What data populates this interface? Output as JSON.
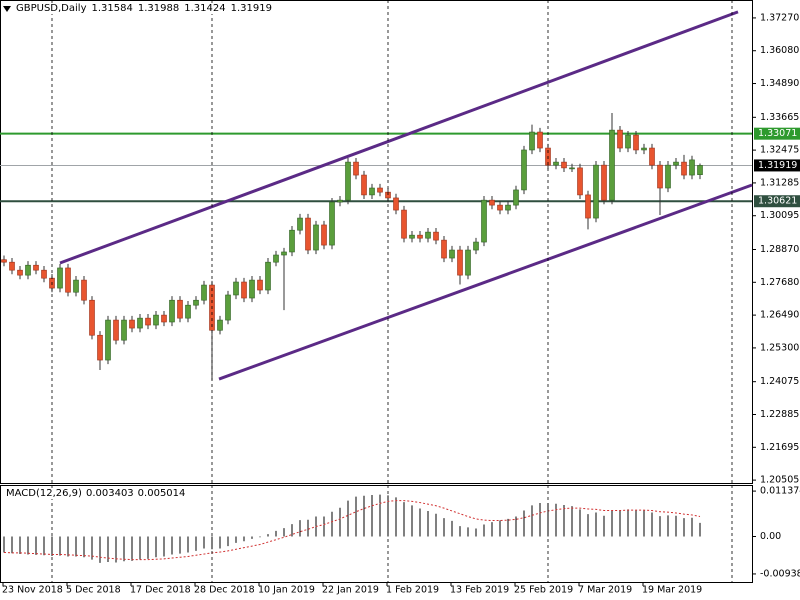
{
  "chart_data": [
    {
      "type": "candlestick",
      "title": "GBPUSD,Daily",
      "categories": [
        "23 Nov 2018",
        null,
        null,
        null,
        null,
        null,
        null,
        null,
        "5 Dec 2018",
        null,
        null,
        null,
        null,
        null,
        null,
        null,
        "17 Dec 2018",
        null,
        null,
        null,
        null,
        null,
        null,
        null,
        "28 Dec 2018",
        null,
        null,
        null,
        null,
        null,
        null,
        null,
        "10 Jan 2019",
        null,
        null,
        null,
        null,
        null,
        null,
        null,
        "22 Jan 2019",
        null,
        null,
        null,
        null,
        null,
        null,
        null,
        "1 Feb 2019",
        null,
        null,
        null,
        null,
        null,
        null,
        null,
        "13 Feb 2019",
        null,
        null,
        null,
        null,
        null,
        null,
        null,
        "25 Feb 2019",
        null,
        null,
        null,
        null,
        null,
        null,
        null,
        "7 Mar 2019",
        null,
        null,
        null,
        null,
        null,
        null,
        null,
        "19 Mar 2019",
        null,
        null,
        null,
        null,
        null,
        null,
        null
      ],
      "open": [
        1.285,
        1.2841,
        1.2812,
        1.2794,
        1.283,
        1.2812,
        1.2783,
        1.2747,
        1.282,
        1.2732,
        1.2776,
        1.2703,
        1.2576,
        1.2486,
        1.2631,
        1.2558,
        1.2631,
        1.2602,
        1.2638,
        1.2613,
        1.2649,
        1.2624,
        1.2703,
        1.2638,
        1.2685,
        1.2703,
        1.2758,
        1.2594,
        1.2631,
        1.2722,
        1.2769,
        1.2711,
        1.2776,
        1.274,
        1.2841,
        1.2867,
        1.2878,
        1.2957,
        1.3001,
        1.2885,
        1.2976,
        1.2903,
        1.3059,
        1.3066,
        1.3204,
        1.3157,
        1.3085,
        1.311,
        1.3095,
        1.3074,
        1.303,
        1.2928,
        1.2939,
        1.2928,
        1.295,
        1.2921,
        1.2856,
        1.2885,
        1.2794,
        1.2885,
        1.2914,
        1.3066,
        1.3048,
        1.303,
        1.3048,
        1.3103,
        1.3248,
        1.3313,
        1.3255,
        1.3193,
        1.3204,
        1.3183,
        1.3183,
        1.3085,
        1.3001,
        1.3193,
        1.3066,
        1.332,
        1.3255,
        1.3302,
        1.3248,
        1.3255,
        1.3193,
        1.311,
        1.3193,
        1.3204,
        1.3157,
        1.31584
      ],
      "high": [
        1.2865,
        1.2856,
        1.2827,
        1.2845,
        1.2845,
        1.2827,
        1.2798,
        1.2835,
        1.2835,
        1.2791,
        1.2791,
        1.2718,
        1.2591,
        1.2646,
        1.2646,
        1.2646,
        1.2646,
        1.2653,
        1.2653,
        1.2664,
        1.2664,
        1.2718,
        1.2718,
        1.27,
        1.2718,
        1.2773,
        1.2773,
        1.2646,
        1.2737,
        1.2784,
        1.2784,
        1.2791,
        1.2791,
        1.2856,
        1.2882,
        1.2893,
        1.2972,
        1.3016,
        1.3016,
        1.2991,
        1.2991,
        1.3074,
        1.3081,
        1.3219,
        1.3219,
        1.3172,
        1.3125,
        1.3125,
        1.311,
        1.3089,
        1.3045,
        1.2954,
        1.2954,
        1.2965,
        1.2965,
        1.2936,
        1.29,
        1.29,
        1.29,
        1.2929,
        1.3081,
        1.3081,
        1.3063,
        1.3063,
        1.3118,
        1.3263,
        1.334,
        1.3328,
        1.327,
        1.3219,
        1.3219,
        1.3198,
        1.3198,
        1.31,
        1.3208,
        1.3208,
        1.3382,
        1.3335,
        1.3317,
        1.3317,
        1.327,
        1.327,
        1.3208,
        1.3208,
        1.3219,
        1.323,
        1.3227,
        1.31988
      ],
      "low": [
        1.2826,
        1.2797,
        1.2779,
        1.2779,
        1.2797,
        1.2768,
        1.2732,
        1.2732,
        1.2717,
        1.2717,
        1.2688,
        1.2561,
        1.245,
        1.2471,
        1.2543,
        1.2543,
        1.2587,
        1.2587,
        1.2598,
        1.2598,
        1.2609,
        1.2609,
        1.2623,
        1.2623,
        1.267,
        1.2688,
        1.2413,
        1.2579,
        1.2616,
        1.2707,
        1.2696,
        1.2696,
        1.2725,
        1.2725,
        1.2826,
        1.2667,
        1.2863,
        1.2942,
        1.287,
        1.287,
        1.2888,
        1.2888,
        1.3044,
        1.3051,
        1.3142,
        1.307,
        1.307,
        1.308,
        1.3059,
        1.3015,
        1.2913,
        1.2913,
        1.2913,
        1.2913,
        1.2906,
        1.2841,
        1.2841,
        1.276,
        1.2779,
        1.287,
        1.2899,
        1.3033,
        1.3015,
        1.3015,
        1.3033,
        1.3088,
        1.3233,
        1.324,
        1.3178,
        1.3178,
        1.3168,
        1.3168,
        1.307,
        1.296,
        1.2986,
        1.3051,
        1.3051,
        1.324,
        1.324,
        1.3233,
        1.3233,
        1.3178,
        1.3012,
        1.3095,
        1.3178,
        1.3142,
        1.3142,
        1.31424
      ],
      "close": [
        1.2841,
        1.2812,
        1.2794,
        1.283,
        1.2812,
        1.2783,
        1.2747,
        1.282,
        1.2732,
        1.2776,
        1.2703,
        1.2576,
        1.2486,
        1.2631,
        1.2558,
        1.2631,
        1.2602,
        1.2638,
        1.2613,
        1.2649,
        1.2624,
        1.2703,
        1.2638,
        1.2685,
        1.2703,
        1.2758,
        1.2594,
        1.2631,
        1.2722,
        1.2769,
        1.2711,
        1.2776,
        1.274,
        1.2841,
        1.2867,
        1.2878,
        1.2957,
        1.3001,
        1.2885,
        1.2976,
        1.2903,
        1.3059,
        1.3066,
        1.3204,
        1.3157,
        1.3085,
        1.311,
        1.3095,
        1.3074,
        1.303,
        1.2928,
        1.2939,
        1.2928,
        1.295,
        1.2921,
        1.2856,
        1.2885,
        1.2794,
        1.2885,
        1.2914,
        1.3066,
        1.3048,
        1.303,
        1.3048,
        1.3103,
        1.3248,
        1.3313,
        1.3255,
        1.3193,
        1.3204,
        1.3183,
        1.3183,
        1.3085,
        1.3001,
        1.3193,
        1.3066,
        1.332,
        1.3255,
        1.3302,
        1.3248,
        1.3255,
        1.3193,
        1.311,
        1.3193,
        1.3204,
        1.3157,
        1.3212,
        1.31919
      ],
      "up_color": "#5a9e3c",
      "down_color": "#e8552f",
      "ylim": [
        1.204,
        1.3792
      ],
      "yticks": [
        {
          "value": 1.3727,
          "label": "1.37270"
        },
        {
          "value": 1.3608,
          "label": "1.36080"
        },
        {
          "value": 1.3489,
          "label": "1.34890"
        },
        1.33665,
        1.32475,
        1.31285,
        1.30095,
        {
          "value": 1.2887,
          "label": "1.28870"
        },
        {
          "value": 1.2768,
          "label": "1.27680"
        },
        {
          "value": 1.2649,
          "label": "1.26490"
        },
        {
          "value": 1.253,
          "label": "1.25300"
        },
        1.24075,
        1.22885,
        1.21695,
        1.20505
      ],
      "hlines": [
        {
          "value": 1.33071,
          "color": "#2e9a2e",
          "width": 2,
          "box": "#2e9a2e"
        },
        {
          "value": 1.30621,
          "color": "#2f4f3f",
          "width": 2,
          "box": "#2f4f3f"
        },
        {
          "value": 1.31919,
          "color": "#a0a4a8",
          "width": 1,
          "box": "#000000"
        }
      ],
      "trendlines": [
        {
          "x": [
            7,
            91.75
          ],
          "y": [
            1.2838,
            1.3749
          ],
          "color": "#5b2a86"
        },
        {
          "x": [
            26.875,
            93.5
          ],
          "y": [
            1.2417,
            1.3121
          ],
          "color": "#5b2a86"
        }
      ],
      "period_separators": [
        6,
        26,
        48,
        68,
        91
      ]
    },
    {
      "type": "macd",
      "title": "MACD(12,26,9)",
      "values": [
        -0.004,
        -0.0042,
        -0.0044,
        -0.0045,
        -0.0046,
        -0.0047,
        -0.0049,
        -0.0048,
        -0.005,
        -0.005,
        -0.0052,
        -0.0058,
        -0.0066,
        -0.0064,
        -0.0065,
        -0.0062,
        -0.0061,
        -0.0058,
        -0.0056,
        -0.0052,
        -0.005,
        -0.0045,
        -0.0043,
        -0.004,
        -0.0036,
        -0.003,
        -0.0032,
        -0.003,
        -0.0024,
        -0.0016,
        -0.0012,
        -0.0006,
        -0.0002,
        0.0006,
        0.0014,
        0.0021,
        0.0031,
        0.0041,
        0.0042,
        0.005,
        0.005,
        0.0062,
        0.0072,
        0.009,
        0.01,
        0.0102,
        0.0104,
        0.0105,
        0.0103,
        0.0098,
        0.0086,
        0.0078,
        0.007,
        0.0064,
        0.0057,
        0.0046,
        0.0039,
        0.0026,
        0.0023,
        0.002,
        0.003,
        0.0036,
        0.004,
        0.0044,
        0.005,
        0.0065,
        0.0078,
        0.0084,
        0.0084,
        0.0082,
        0.0079,
        0.0076,
        0.0068,
        0.0056,
        0.006,
        0.0052,
        0.0066,
        0.0066,
        0.0068,
        0.0066,
        0.0066,
        0.006,
        0.0051,
        0.0053,
        0.0052,
        0.0046,
        0.0047,
        0.003403
      ],
      "color": "#000000",
      "signal": [
        -0.004,
        -0.0041,
        -0.0041,
        -0.0042,
        -0.0043,
        -0.0044,
        -0.0045,
        -0.0045,
        -0.0046,
        -0.0047,
        -0.0048,
        -0.0049,
        -0.0052,
        -0.0054,
        -0.0056,
        -0.0057,
        -0.0058,
        -0.0058,
        -0.0058,
        -0.0057,
        -0.0056,
        -0.0054,
        -0.0052,
        -0.005,
        -0.0047,
        -0.0044,
        -0.0041,
        -0.0039,
        -0.0036,
        -0.0032,
        -0.0028,
        -0.0024,
        -0.002,
        -0.0014,
        -0.0008,
        -0.0002,
        0.0005,
        0.0012,
        0.0018,
        0.0025,
        0.003,
        0.0037,
        0.0044,
        0.0053,
        0.0062,
        0.007,
        0.0077,
        0.0083,
        0.0088,
        0.009,
        0.009,
        0.0088,
        0.0085,
        0.0081,
        0.0077,
        0.0071,
        0.0064,
        0.0057,
        0.005,
        0.0044,
        0.0041,
        0.004,
        0.004,
        0.0041,
        0.0043,
        0.0047,
        0.0053,
        0.0059,
        0.0064,
        0.0067,
        0.007,
        0.0071,
        0.0071,
        0.0069,
        0.0068,
        0.0065,
        0.0065,
        0.0065,
        0.0066,
        0.0066,
        0.0066,
        0.0065,
        0.0062,
        0.0061,
        0.0059,
        0.0056,
        0.0054,
        0.005014
      ],
      "signal_color": "#d03030",
      "ylim": [
        -0.0114,
        0.0129
      ],
      "yticks": [
        0.011374,
        {
          "value": 0,
          "label": "0.00"
        },
        -0.00938
      ]
    }
  ]
}
